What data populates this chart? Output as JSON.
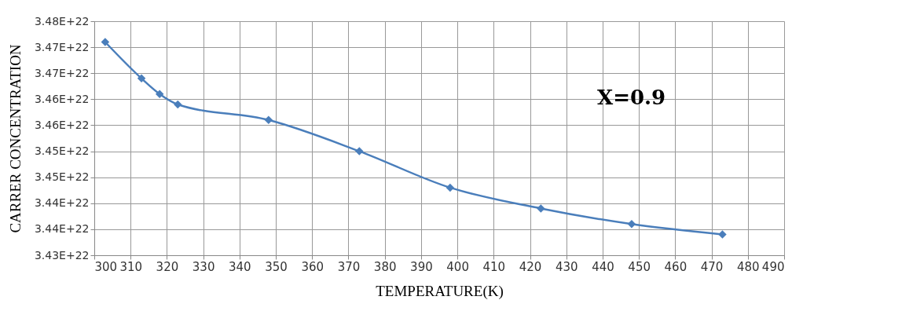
{
  "chart_data": {
    "type": "line",
    "xlabel": "TEMPERATURE(K)",
    "ylabel": "CARRER CONCENTRATION",
    "annotations": [
      "X=0.9"
    ],
    "x": [
      303,
      313,
      318,
      323,
      348,
      373,
      398,
      423,
      448,
      473
    ],
    "series": [
      {
        "color": "#4a7ebb",
        "values": [
          3.471e+22,
          3.464e+22,
          3.461e+22,
          3.459e+22,
          3.456e+22,
          3.45e+22,
          3.443e+22,
          3.439e+22,
          3.436e+22,
          3.434e+22
        ]
      }
    ],
    "xlim": [
      300,
      490
    ],
    "xticks": [
      300,
      310,
      320,
      330,
      340,
      350,
      360,
      370,
      380,
      390,
      400,
      410,
      420,
      430,
      440,
      450,
      460,
      470,
      480,
      490
    ],
    "ylim": [
      3.43e+22,
      3.475e+22
    ],
    "yticks": [
      {
        "value": 3.43e+22,
        "label": "3.43E+22"
      },
      {
        "value": 3.435e+22,
        "label": "3.44E+22"
      },
      {
        "value": 3.44e+22,
        "label": "3.44E+22"
      },
      {
        "value": 3.445e+22,
        "label": "3.45E+22"
      },
      {
        "value": 3.45e+22,
        "label": "3.45E+22"
      },
      {
        "value": 3.455e+22,
        "label": "3.46E+22"
      },
      {
        "value": 3.46e+22,
        "label": "3.46E+22"
      },
      {
        "value": 3.465e+22,
        "label": "3.47E+22"
      },
      {
        "value": 3.47e+22,
        "label": "3.47E+22"
      },
      {
        "value": 3.475e+22,
        "label": "3.48E+22"
      }
    ],
    "grid": true,
    "marker": "diamond",
    "line_style": "solid"
  }
}
